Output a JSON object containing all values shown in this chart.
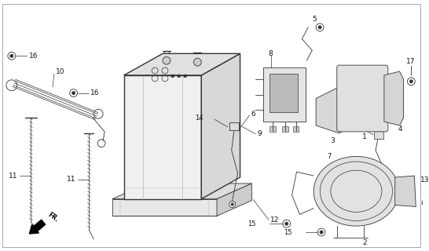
{
  "background_color": "#ffffff",
  "line_color": "#333333",
  "fig_width": 5.46,
  "fig_height": 3.2,
  "dpi": 100
}
